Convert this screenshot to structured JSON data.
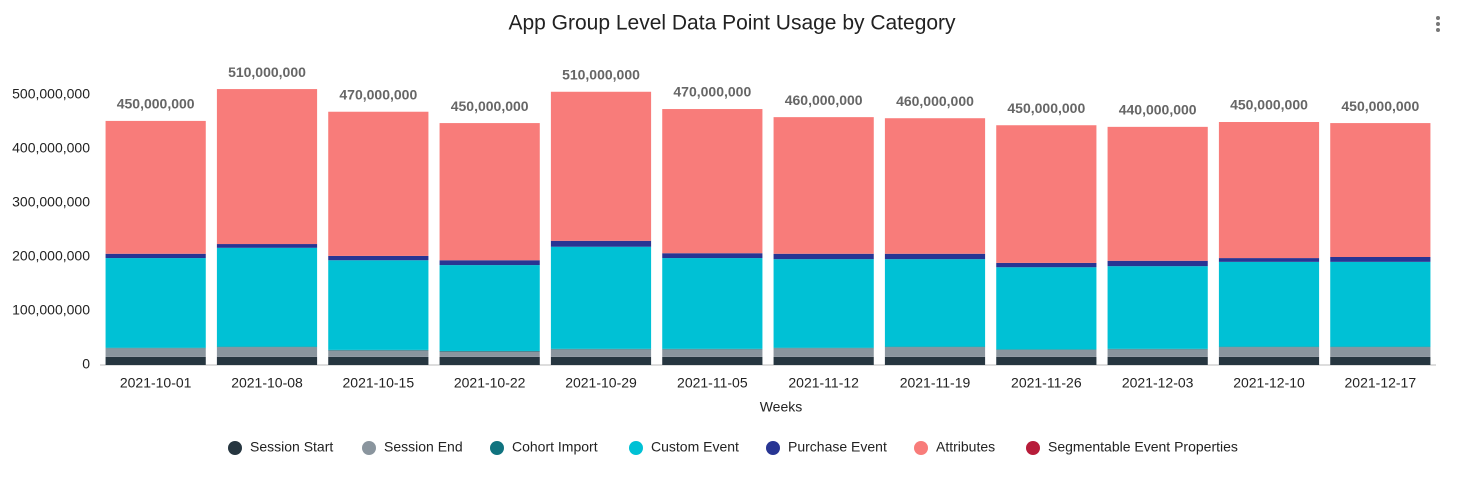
{
  "chart_data": {
    "type": "stacked_bar",
    "title": "App Group Level Data Point Usage by Category",
    "x_label": "Weeks",
    "categories": [
      "2021-10-01",
      "2021-10-08",
      "2021-10-15",
      "2021-10-22",
      "2021-10-29",
      "2021-11-05",
      "2021-11-12",
      "2021-11-19",
      "2021-11-26",
      "2021-12-03",
      "2021-12-10",
      "2021-12-17"
    ],
    "series": [
      {
        "name": "Session Start",
        "color": "#263640",
        "values": [
          15000000,
          15000000,
          15000000,
          15000000,
          15000000,
          15000000,
          15000000,
          15000000,
          15000000,
          15000000,
          15000000,
          15000000
        ]
      },
      {
        "name": "Session End",
        "color": "#8a959e",
        "values": [
          16000000,
          18000000,
          12000000,
          10000000,
          14000000,
          14000000,
          16000000,
          18000000,
          13000000,
          14000000,
          18000000,
          18000000
        ]
      },
      {
        "name": "Cohort Import",
        "color": "#10737f",
        "values": [
          1000000,
          1000000,
          1000000,
          1000000,
          1000000,
          1000000,
          1000000,
          1000000,
          1000000,
          1000000,
          1000000,
          1000000
        ]
      },
      {
        "name": "Custom Event",
        "color": "#00c1d5",
        "values": [
          166000000,
          183000000,
          166000000,
          159000000,
          189000000,
          168000000,
          164000000,
          162000000,
          152000000,
          153000000,
          157000000,
          157000000
        ]
      },
      {
        "name": "Purchase Event",
        "color": "#283593",
        "values": [
          8000000,
          7000000,
          8000000,
          9000000,
          11000000,
          9000000,
          10000000,
          10000000,
          8000000,
          10000000,
          7000000,
          9000000
        ]
      },
      {
        "name": "Attributes",
        "color": "#f87c7a",
        "values": [
          246000000,
          287000000,
          267000000,
          254000000,
          276000000,
          267000000,
          253000000,
          251000000,
          255000000,
          248000000,
          252000000,
          248000000
        ]
      },
      {
        "name": "Segmentable Event Properties",
        "color": "#b71c3a",
        "values": [
          0,
          0,
          0,
          0,
          0,
          0,
          0,
          0,
          0,
          0,
          0,
          0
        ]
      }
    ],
    "totals": {
      "values": [
        450000000,
        510000000,
        470000000,
        450000000,
        510000000,
        470000000,
        460000000,
        460000000,
        450000000,
        440000000,
        450000000,
        450000000
      ],
      "value_labels": [
        "450,000,000",
        "510,000,000",
        "470,000,000",
        "450,000,000",
        "510,000,000",
        "470,000,000",
        "460,000,000",
        "460,000,000",
        "450,000,000",
        "440,000,000",
        "450,000,000",
        "450,000,000"
      ]
    },
    "ylim": [
      0,
      500000000
    ],
    "yticks": [
      0,
      {
        "value": 100000000,
        "label": "100,000,000"
      },
      {
        "value": 200000000,
        "label": "200,000,000"
      },
      {
        "value": 300000000,
        "label": "300,000,000"
      },
      {
        "value": 400000000,
        "label": "400,000,000"
      },
      {
        "value": 500000000,
        "label": "500,000,000"
      }
    ],
    "grid": false
  }
}
